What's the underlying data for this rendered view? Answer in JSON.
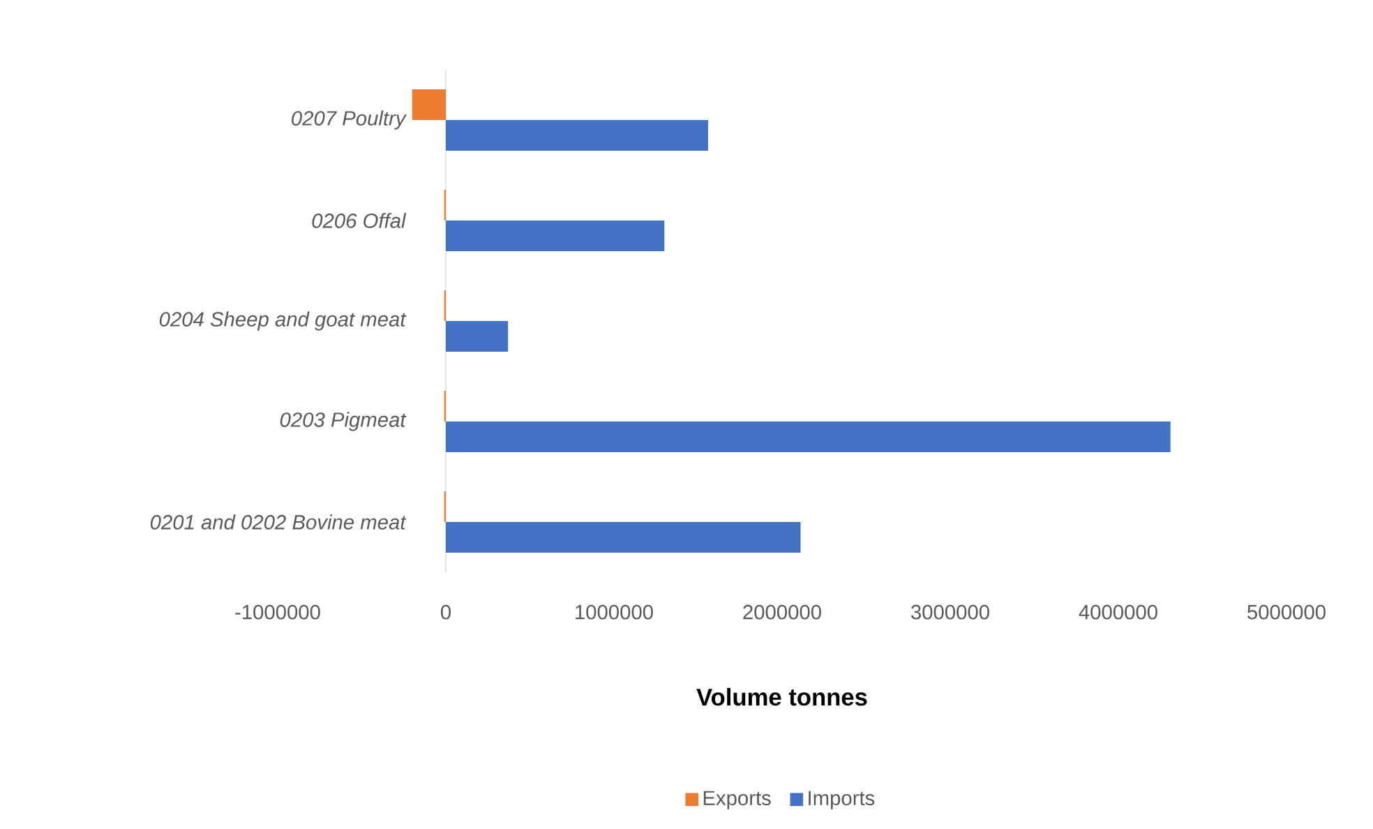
{
  "chart_data": {
    "type": "bar",
    "orientation": "horizontal",
    "categories": [
      "0207 Poultry",
      "0206 Offal",
      "0204 Sheep and goat meat",
      "0203 Pigmeat",
      "0201 and 0202 Bovine meat"
    ],
    "series": [
      {
        "name": "Exports",
        "color": "#ed7d31",
        "values": [
          -200000,
          -10000,
          -10000,
          -10000,
          -10000
        ]
      },
      {
        "name": "Imports",
        "color": "#4472c4",
        "values": [
          1560000,
          1300000,
          370000,
          4310000,
          2110000
        ]
      }
    ],
    "xlim": [
      -1000000,
      5000000
    ],
    "xticks": [
      -1000000,
      0,
      1000000,
      2000000,
      3000000,
      4000000,
      5000000
    ],
    "xlabel": "Volume tonnes",
    "legend": "bottom"
  }
}
